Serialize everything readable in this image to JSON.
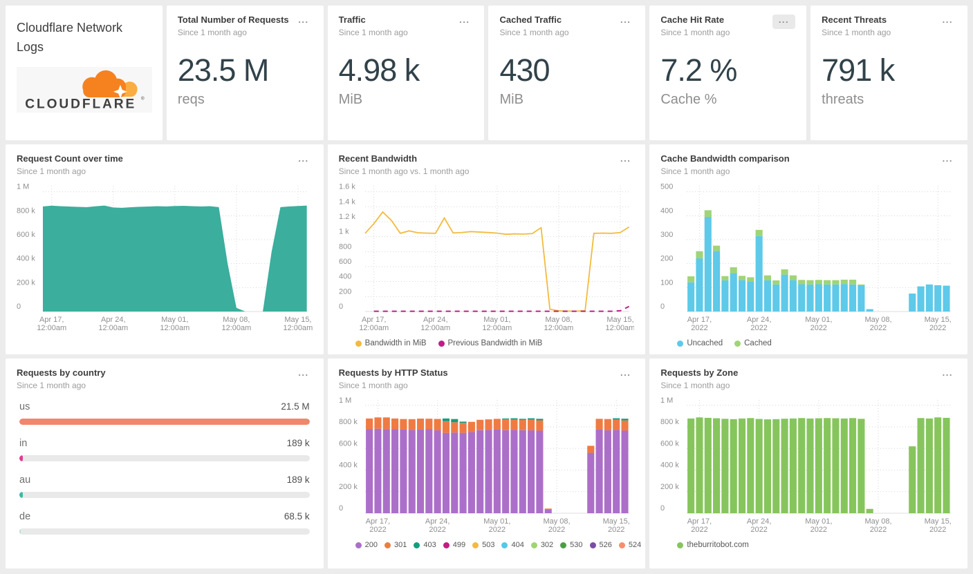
{
  "app": {
    "background": "#ececec",
    "panel_bg": "#ffffff",
    "menu_icon_label": "..."
  },
  "logo_panel": {
    "title": "Cloudflare Network Logs",
    "brand_text": "CLOUDFLARE",
    "brand_reg_mark": "®",
    "brand_colors": {
      "cloud_main": "#f6821f",
      "cloud_light": "#fbad41",
      "text": "#404041"
    }
  },
  "stat_panels": [
    {
      "title": "Total Number of Requests",
      "subtitle": "Since 1 month ago",
      "value": "23.5 M",
      "unit": "reqs"
    },
    {
      "title": "Traffic",
      "subtitle": "Since 1 month ago",
      "value": "4.98 k",
      "unit": "MiB"
    },
    {
      "title": "Cached Traffic",
      "subtitle": "Since 1 month ago",
      "value": "430",
      "unit": "MiB"
    },
    {
      "title": "Cache Hit Rate",
      "subtitle": "Since 1 month ago",
      "value": "7.2 %",
      "unit": "Cache %",
      "menu_hover": true
    },
    {
      "title": "Recent Threats",
      "subtitle": "Since 1 month ago",
      "value": "791 k",
      "unit": "threats"
    }
  ],
  "charts": {
    "request_count": {
      "type": "area",
      "title": "Request Count over time",
      "subtitle": "Since 1 month ago",
      "color": "#3bae9d",
      "ylim": [
        0,
        1050
      ],
      "vgrid": true,
      "y_ticks": [
        {
          "v": 1000,
          "label": "1 M"
        },
        {
          "v": 800,
          "label": "800 k"
        },
        {
          "v": 600,
          "label": "600 k"
        },
        {
          "v": 400,
          "label": "400 k"
        },
        {
          "v": 200,
          "label": "200 k"
        },
        {
          "v": 0,
          "label": "0"
        }
      ],
      "x_ticks": [
        {
          "i": 1,
          "lines": [
            "Apr 17,",
            "12:00am"
          ]
        },
        {
          "i": 8,
          "lines": [
            "Apr 24,",
            "12:00am"
          ]
        },
        {
          "i": 15,
          "lines": [
            "May 01,",
            "12:00am"
          ]
        },
        {
          "i": 22,
          "lines": [
            "May 08,",
            "12:00am"
          ]
        },
        {
          "i": 29,
          "lines": [
            "May 15,",
            "12:00am"
          ]
        }
      ],
      "values": [
        878,
        884,
        880,
        877,
        874,
        872,
        879,
        885,
        869,
        866,
        871,
        875,
        877,
        880,
        878,
        881,
        883,
        880,
        878,
        880,
        872,
        400,
        30,
        0,
        0,
        0,
        500,
        872,
        878,
        881,
        885
      ]
    },
    "bandwidth": {
      "type": "line",
      "title": "Recent Bandwidth",
      "subtitle": "Since 1 month ago vs. 1 month ago",
      "ylim": [
        0,
        1680
      ],
      "vgrid": true,
      "y_ticks": [
        {
          "v": 1600,
          "label": "1.6 k"
        },
        {
          "v": 1400,
          "label": "1.4 k"
        },
        {
          "v": 1200,
          "label": "1.2 k"
        },
        {
          "v": 1000,
          "label": "1 k"
        },
        {
          "v": 800,
          "label": "800"
        },
        {
          "v": 600,
          "label": "600"
        },
        {
          "v": 400,
          "label": "400"
        },
        {
          "v": 200,
          "label": "200"
        },
        {
          "v": 0,
          "label": "0"
        }
      ],
      "x_ticks": [
        {
          "i": 1,
          "lines": [
            "Apr 17,",
            "12:00am"
          ]
        },
        {
          "i": 8,
          "lines": [
            "Apr 24,",
            "12:00am"
          ]
        },
        {
          "i": 15,
          "lines": [
            "May 01,",
            "12:00am"
          ]
        },
        {
          "i": 22,
          "lines": [
            "May 08,",
            "12:00am"
          ]
        },
        {
          "i": 29,
          "lines": [
            "May 15,",
            "12:00am"
          ]
        }
      ],
      "series": [
        {
          "name": "Bandwidth in MiB",
          "color": "#f2bb3d",
          "width": 1.8,
          "values": [
            1045,
            1175,
            1330,
            1215,
            1045,
            1078,
            1052,
            1048,
            1045,
            1250,
            1050,
            1056,
            1068,
            1062,
            1055,
            1048,
            1032,
            1038,
            1035,
            1042,
            1120,
            30,
            10,
            6,
            6,
            10,
            1045,
            1048,
            1045,
            1056,
            1130
          ]
        },
        {
          "name": "Previous Bandwidth in MiB",
          "color": "#c11d85",
          "width": 2,
          "dash": "7 6",
          "values": [
            null,
            4,
            4,
            4,
            4,
            4,
            4,
            4,
            4,
            4,
            4,
            4,
            4,
            4,
            4,
            4,
            4,
            4,
            4,
            4,
            4,
            4,
            4,
            4,
            4,
            4,
            4,
            4,
            4,
            10,
            68
          ]
        }
      ]
    },
    "cache_cmp": {
      "type": "stackbar",
      "title": "Cache Bandwidth comparison",
      "subtitle": "Since 1 month ago",
      "ylim": [
        0,
        525
      ],
      "vgrid": true,
      "y_ticks": [
        {
          "v": 500,
          "label": "500"
        },
        {
          "v": 400,
          "label": "400"
        },
        {
          "v": 300,
          "label": "300"
        },
        {
          "v": 200,
          "label": "200"
        },
        {
          "v": 100,
          "label": "100"
        },
        {
          "v": 0,
          "label": "0"
        }
      ],
      "x_ticks": [
        {
          "i": 1,
          "lines": [
            "Apr 17,",
            "2022"
          ]
        },
        {
          "i": 8,
          "lines": [
            "Apr 24,",
            "2022"
          ]
        },
        {
          "i": 15,
          "lines": [
            "May 01,",
            "2022"
          ]
        },
        {
          "i": 22,
          "lines": [
            "May 08,",
            "2022"
          ]
        },
        {
          "i": 29,
          "lines": [
            "May 15,",
            "2022"
          ]
        }
      ],
      "series": [
        {
          "name": "Uncached",
          "color": "#5ec9e9",
          "values": [
            122,
            222,
            395,
            253,
            130,
            160,
            131,
            126,
            315,
            130,
            113,
            154,
            131,
            114,
            113,
            114,
            113,
            113,
            115,
            113,
            110,
            10,
            0,
            0,
            0,
            0,
            75,
            105,
            113,
            110,
            108
          ]
        },
        {
          "name": "Cached",
          "color": "#a0d476",
          "values": [
            25,
            30,
            28,
            22,
            18,
            25,
            18,
            17,
            26,
            21,
            17,
            22,
            20,
            18,
            18,
            18,
            18,
            18,
            18,
            20,
            3,
            0,
            0,
            0,
            0,
            0,
            0,
            0,
            0,
            0,
            0
          ]
        }
      ]
    },
    "by_country": {
      "type": "hbar",
      "title": "Requests by country",
      "subtitle": "Since 1 month ago",
      "rows": [
        {
          "label": "us",
          "value": "21.5 M",
          "pct": 100,
          "color": "#f0876a"
        },
        {
          "label": "in",
          "value": "189 k",
          "pct": 1.1,
          "color": "#e23c8e"
        },
        {
          "label": "au",
          "value": "189 k",
          "pct": 1.1,
          "color": "#3cb9a6"
        },
        {
          "label": "de",
          "value": "68.5 k",
          "pct": 0.5,
          "color": "#b9e0d9"
        }
      ]
    },
    "http_status": {
      "type": "stackbar",
      "title": "Requests by HTTP Status",
      "subtitle": "Since 1 month ago",
      "ylim": [
        0,
        1050
      ],
      "vgrid": true,
      "y_ticks": [
        {
          "v": 1000,
          "label": "1 M"
        },
        {
          "v": 800,
          "label": "800 k"
        },
        {
          "v": 600,
          "label": "600 k"
        },
        {
          "v": 400,
          "label": "400 k"
        },
        {
          "v": 200,
          "label": "200 k"
        },
        {
          "v": 0,
          "label": "0"
        }
      ],
      "x_ticks": [
        {
          "i": 1,
          "lines": [
            "Apr 17,",
            "2022"
          ]
        },
        {
          "i": 8,
          "lines": [
            "Apr 24,",
            "2022"
          ]
        },
        {
          "i": 15,
          "lines": [
            "May 01,",
            "2022"
          ]
        },
        {
          "i": 22,
          "lines": [
            "May 08,",
            "2022"
          ]
        },
        {
          "i": 29,
          "lines": [
            "May 15,",
            "2022"
          ]
        }
      ],
      "series": [
        {
          "name": "200",
          "color": "#ab6fc9",
          "values": [
            778,
            783,
            780,
            778,
            775,
            772,
            775,
            778,
            768,
            745,
            748,
            745,
            752,
            770,
            772,
            775,
            770,
            772,
            770,
            768,
            765,
            35,
            0,
            0,
            0,
            0,
            560,
            775,
            768,
            772,
            765
          ]
        },
        {
          "name": "301",
          "color": "#ef7b43",
          "values": [
            100,
            105,
            108,
            100,
            98,
            100,
            102,
            98,
            106,
            108,
            95,
            92,
            95,
            96,
            98,
            100,
            100,
            96,
            95,
            100,
            96,
            8,
            0,
            0,
            0,
            0,
            65,
            100,
            105,
            96,
            95
          ]
        },
        {
          "name": "403",
          "color": "#169b80",
          "values": [
            0,
            0,
            0,
            0,
            0,
            0,
            0,
            0,
            0,
            25,
            30,
            12,
            0,
            0,
            0,
            0,
            8,
            12,
            10,
            12,
            14,
            0,
            0,
            0,
            0,
            0,
            0,
            0,
            0,
            12,
            16
          ]
        }
      ],
      "legend": [
        {
          "label": "200",
          "color": "#ab6fc9"
        },
        {
          "label": "301",
          "color": "#ef7b43"
        },
        {
          "label": "403",
          "color": "#169b80"
        },
        {
          "label": "499",
          "color": "#c11d85"
        },
        {
          "label": "503",
          "color": "#f2bb3d"
        },
        {
          "label": "404",
          "color": "#56c7e8"
        },
        {
          "label": "302",
          "color": "#9fd474"
        },
        {
          "label": "530",
          "color": "#4c9e45"
        },
        {
          "label": "526",
          "color": "#7b4ea3"
        },
        {
          "label": "524",
          "color": "#f58e6f"
        }
      ]
    },
    "zone": {
      "type": "stackbar",
      "title": "Requests by Zone",
      "subtitle": "Since 1 month ago",
      "ylim": [
        0,
        1050
      ],
      "vgrid": true,
      "y_ticks": [
        {
          "v": 1000,
          "label": "1 M"
        },
        {
          "v": 800,
          "label": "800 k"
        },
        {
          "v": 600,
          "label": "600 k"
        },
        {
          "v": 400,
          "label": "400 k"
        },
        {
          "v": 200,
          "label": "200 k"
        },
        {
          "v": 0,
          "label": "0"
        }
      ],
      "x_ticks": [
        {
          "i": 1,
          "lines": [
            "Apr 17,",
            "2022"
          ]
        },
        {
          "i": 8,
          "lines": [
            "Apr 24,",
            "2022"
          ]
        },
        {
          "i": 15,
          "lines": [
            "May 01,",
            "2022"
          ]
        },
        {
          "i": 22,
          "lines": [
            "May 08,",
            "2022"
          ]
        },
        {
          "i": 29,
          "lines": [
            "May 15,",
            "2022"
          ]
        }
      ],
      "series": [
        {
          "name": "theburritobot.com",
          "color": "#86c55c",
          "values": [
            878,
            888,
            884,
            880,
            875,
            872,
            878,
            882,
            874,
            870,
            872,
            876,
            878,
            882,
            878,
            880,
            882,
            880,
            878,
            882,
            875,
            40,
            0,
            0,
            0,
            0,
            620,
            882,
            878,
            888,
            884
          ]
        }
      ]
    }
  }
}
